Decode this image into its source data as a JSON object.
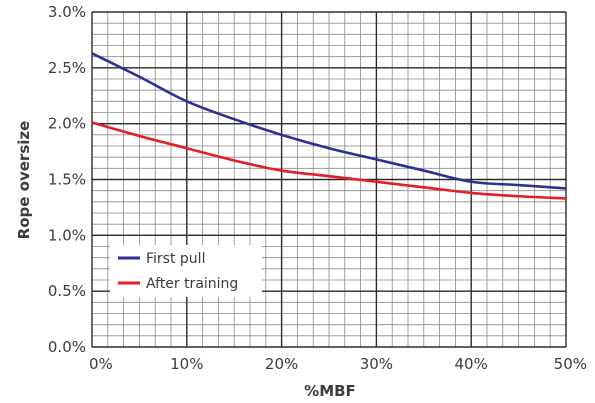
{
  "chart_data": {
    "type": "line",
    "xlabel": "%MBF",
    "ylabel": "Rope oversize",
    "xlim": [
      0,
      50
    ],
    "ylim": [
      0,
      3.0
    ],
    "x_ticks": [
      "0%",
      "10%",
      "20%",
      "30%",
      "40%",
      "50%"
    ],
    "y_ticks": [
      "0.0%",
      "0.5%",
      "1.0%",
      "1.5%",
      "2.0%",
      "2.5%",
      "3.0%"
    ],
    "grid": true,
    "legend_position": "lower-left",
    "series": [
      {
        "name": "First pull",
        "color": "#2e3192",
        "x": [
          0,
          5,
          10,
          15,
          20,
          25,
          30,
          35,
          40,
          45,
          50
        ],
        "y": [
          2.63,
          2.42,
          2.2,
          2.04,
          1.9,
          1.78,
          1.68,
          1.58,
          1.48,
          1.45,
          1.42
        ]
      },
      {
        "name": "After training",
        "color": "#e31e24",
        "x": [
          0,
          5,
          10,
          15,
          20,
          25,
          30,
          35,
          40,
          45,
          50
        ],
        "y": [
          2.01,
          1.89,
          1.78,
          1.67,
          1.58,
          1.53,
          1.48,
          1.43,
          1.38,
          1.35,
          1.33
        ]
      }
    ]
  }
}
